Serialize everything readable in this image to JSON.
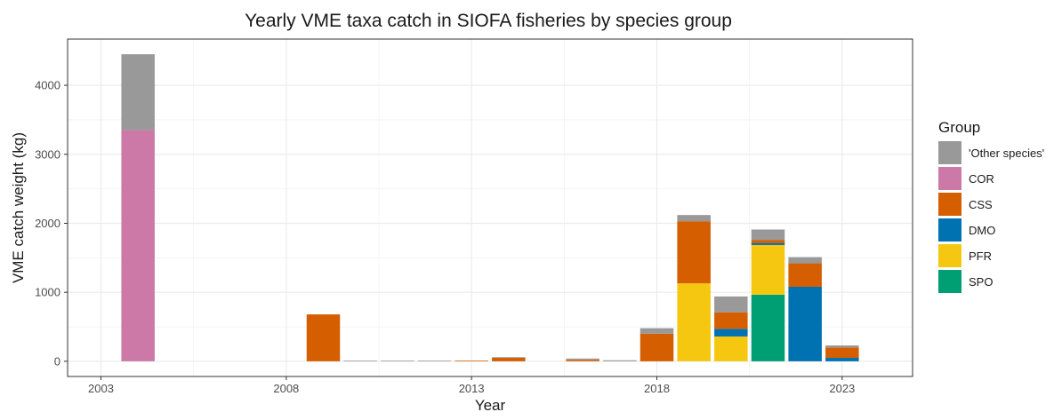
{
  "chart_data": {
    "type": "bar",
    "stacked": true,
    "title": "Yearly VME taxa catch in SIOFA fisheries by species group",
    "xlabel": "Year",
    "ylabel": "VME catch weight (kg)",
    "xlim": [
      2002.1,
      2024.9
    ],
    "ylim": [
      -220,
      4670
    ],
    "x_ticks": [
      2003,
      2008,
      2013,
      2018,
      2023
    ],
    "y_ticks": [
      0,
      1000,
      2000,
      3000,
      4000
    ],
    "legend_title": "Group",
    "legend_position": "right",
    "grid": true,
    "series": [
      {
        "name": "'Other species'",
        "color": "#999999"
      },
      {
        "name": "COR",
        "color": "#CC79A7"
      },
      {
        "name": "CSS",
        "color": "#D55E00"
      },
      {
        "name": "DMO",
        "color": "#0072B2"
      },
      {
        "name": "PFR",
        "color": "#F5C710"
      },
      {
        "name": "SPO",
        "color": "#009E73"
      }
    ],
    "stack_order": [
      "SPO",
      "PFR",
      "DMO",
      "CSS",
      "COR",
      "'Other species'"
    ],
    "bars": [
      {
        "year": 2004,
        "values": {
          "'Other species'": 1100,
          "COR": 3350
        }
      },
      {
        "year": 2009,
        "values": {
          "CSS": 680
        }
      },
      {
        "year": 2010,
        "values": {
          "'Other species'": 10
        }
      },
      {
        "year": 2011,
        "values": {
          "'Other species'": 10
        }
      },
      {
        "year": 2012,
        "values": {
          "'Other species'": 10
        }
      },
      {
        "year": 2013,
        "values": {
          "CSS": 10
        }
      },
      {
        "year": 2014,
        "values": {
          "'Other species'": 10,
          "CSS": 50
        }
      },
      {
        "year": 2016,
        "values": {
          "'Other species'": 20,
          "CSS": 20
        }
      },
      {
        "year": 2017,
        "values": {
          "'Other species'": 15
        }
      },
      {
        "year": 2018,
        "values": {
          "'Other species'": 80,
          "CSS": 400
        }
      },
      {
        "year": 2019,
        "values": {
          "'Other species'": 90,
          "PFR": 1130,
          "CSS": 900
        }
      },
      {
        "year": 2020,
        "values": {
          "'Other species'": 230,
          "PFR": 360,
          "DMO": 110,
          "CSS": 240
        }
      },
      {
        "year": 2021,
        "values": {
          "'Other species'": 150,
          "SPO": 965,
          "PFR": 720,
          "DMO": 30,
          "CSS": 45
        }
      },
      {
        "year": 2022,
        "values": {
          "'Other species'": 90,
          "DMO": 1080,
          "CSS": 340
        }
      },
      {
        "year": 2023,
        "values": {
          "'Other species'": 30,
          "DMO": 50,
          "CSS": 150
        }
      }
    ]
  }
}
